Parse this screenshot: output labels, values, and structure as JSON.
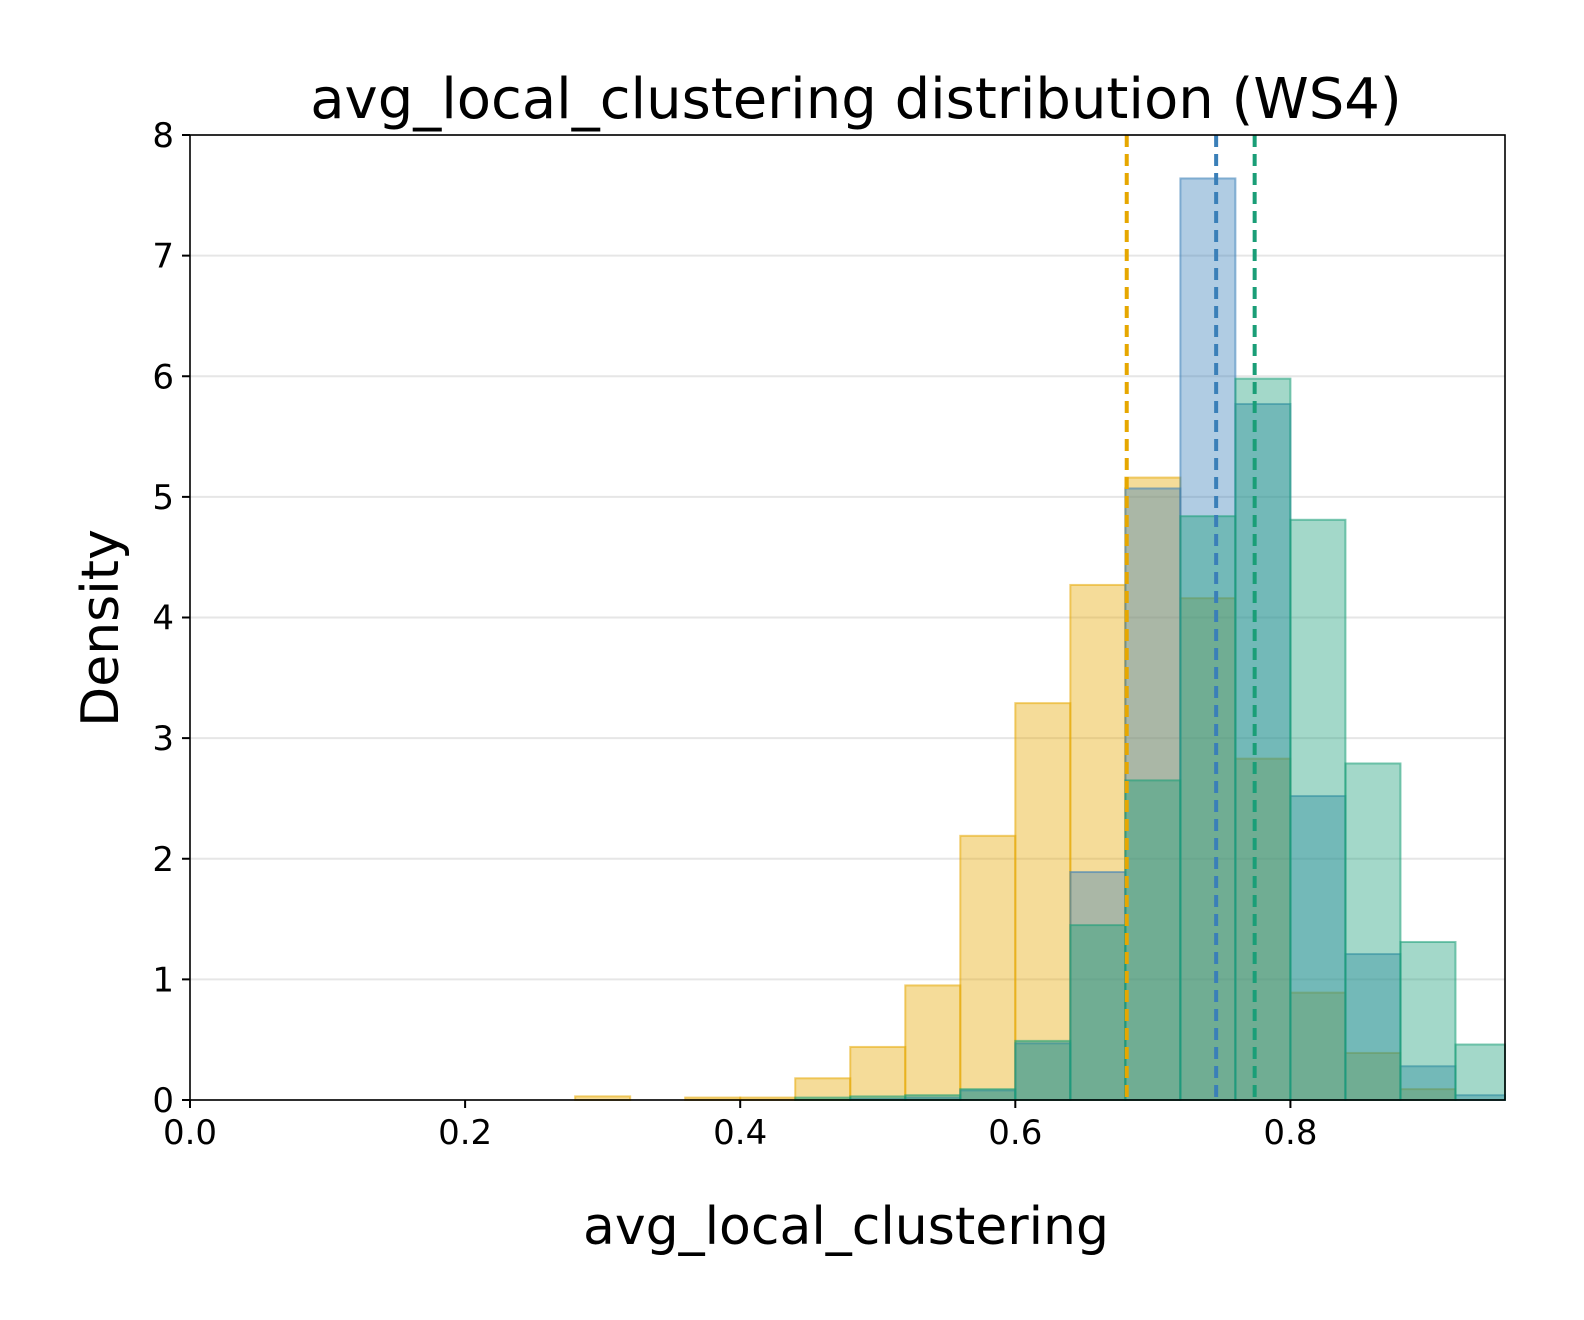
{
  "chart_data": {
    "type": "histogram",
    "title": "avg_local_clustering distribution (WS4)",
    "xlabel": "avg_local_clustering",
    "ylabel": "Density",
    "xlim": [
      0.0,
      0.956
    ],
    "ylim": [
      0,
      8
    ],
    "xticks": [
      "0.0",
      "0.2",
      "0.4",
      "0.6",
      "0.8"
    ],
    "yticks": [
      "0",
      "1",
      "2",
      "3",
      "4",
      "5",
      "6",
      "7",
      "8"
    ],
    "grid": "horizontal",
    "series": [
      {
        "name": "series-yellow",
        "color": "#E6A700",
        "bins": [
          {
            "x0": 0.28,
            "x1": 0.32,
            "density": 0.03
          },
          {
            "x0": 0.36,
            "x1": 0.4,
            "density": 0.02
          },
          {
            "x0": 0.4,
            "x1": 0.44,
            "density": 0.02
          },
          {
            "x0": 0.44,
            "x1": 0.48,
            "density": 0.18
          },
          {
            "x0": 0.48,
            "x1": 0.52,
            "density": 0.44
          },
          {
            "x0": 0.52,
            "x1": 0.56,
            "density": 0.95
          },
          {
            "x0": 0.56,
            "x1": 0.6,
            "density": 2.19
          },
          {
            "x0": 0.6,
            "x1": 0.64,
            "density": 3.29
          },
          {
            "x0": 0.64,
            "x1": 0.68,
            "density": 4.27
          },
          {
            "x0": 0.68,
            "x1": 0.72,
            "density": 5.16
          },
          {
            "x0": 0.72,
            "x1": 0.76,
            "density": 4.16
          },
          {
            "x0": 0.76,
            "x1": 0.8,
            "density": 2.83
          },
          {
            "x0": 0.8,
            "x1": 0.84,
            "density": 0.89
          },
          {
            "x0": 0.84,
            "x1": 0.88,
            "density": 0.39
          },
          {
            "x0": 0.88,
            "x1": 0.92,
            "density": 0.09
          }
        ],
        "mean": 0.681
      },
      {
        "name": "series-blue",
        "color": "#3A7FB8",
        "bins": [
          {
            "x0": 0.48,
            "x1": 0.52,
            "density": 0.01
          },
          {
            "x0": 0.52,
            "x1": 0.56,
            "density": 0.02
          },
          {
            "x0": 0.56,
            "x1": 0.6,
            "density": 0.08
          },
          {
            "x0": 0.6,
            "x1": 0.64,
            "density": 0.47
          },
          {
            "x0": 0.64,
            "x1": 0.68,
            "density": 1.89
          },
          {
            "x0": 0.68,
            "x1": 0.72,
            "density": 5.07
          },
          {
            "x0": 0.72,
            "x1": 0.76,
            "density": 7.64
          },
          {
            "x0": 0.76,
            "x1": 0.8,
            "density": 5.77
          },
          {
            "x0": 0.8,
            "x1": 0.84,
            "density": 2.52
          },
          {
            "x0": 0.84,
            "x1": 0.88,
            "density": 1.21
          },
          {
            "x0": 0.88,
            "x1": 0.92,
            "density": 0.28
          },
          {
            "x0": 0.92,
            "x1": 0.96,
            "density": 0.04
          }
        ],
        "mean": 0.746
      },
      {
        "name": "series-green",
        "color": "#1A9E77",
        "bins": [
          {
            "x0": 0.44,
            "x1": 0.48,
            "density": 0.02
          },
          {
            "x0": 0.48,
            "x1": 0.52,
            "density": 0.03
          },
          {
            "x0": 0.52,
            "x1": 0.56,
            "density": 0.04
          },
          {
            "x0": 0.56,
            "x1": 0.6,
            "density": 0.09
          },
          {
            "x0": 0.6,
            "x1": 0.64,
            "density": 0.49
          },
          {
            "x0": 0.64,
            "x1": 0.68,
            "density": 1.45
          },
          {
            "x0": 0.68,
            "x1": 0.72,
            "density": 2.65
          },
          {
            "x0": 0.72,
            "x1": 0.76,
            "density": 4.84
          },
          {
            "x0": 0.76,
            "x1": 0.8,
            "density": 5.98
          },
          {
            "x0": 0.8,
            "x1": 0.84,
            "density": 4.81
          },
          {
            "x0": 0.84,
            "x1": 0.88,
            "density": 2.79
          },
          {
            "x0": 0.88,
            "x1": 0.92,
            "density": 1.31
          },
          {
            "x0": 0.92,
            "x1": 0.96,
            "density": 0.46
          }
        ],
        "mean": 0.774
      }
    ]
  }
}
